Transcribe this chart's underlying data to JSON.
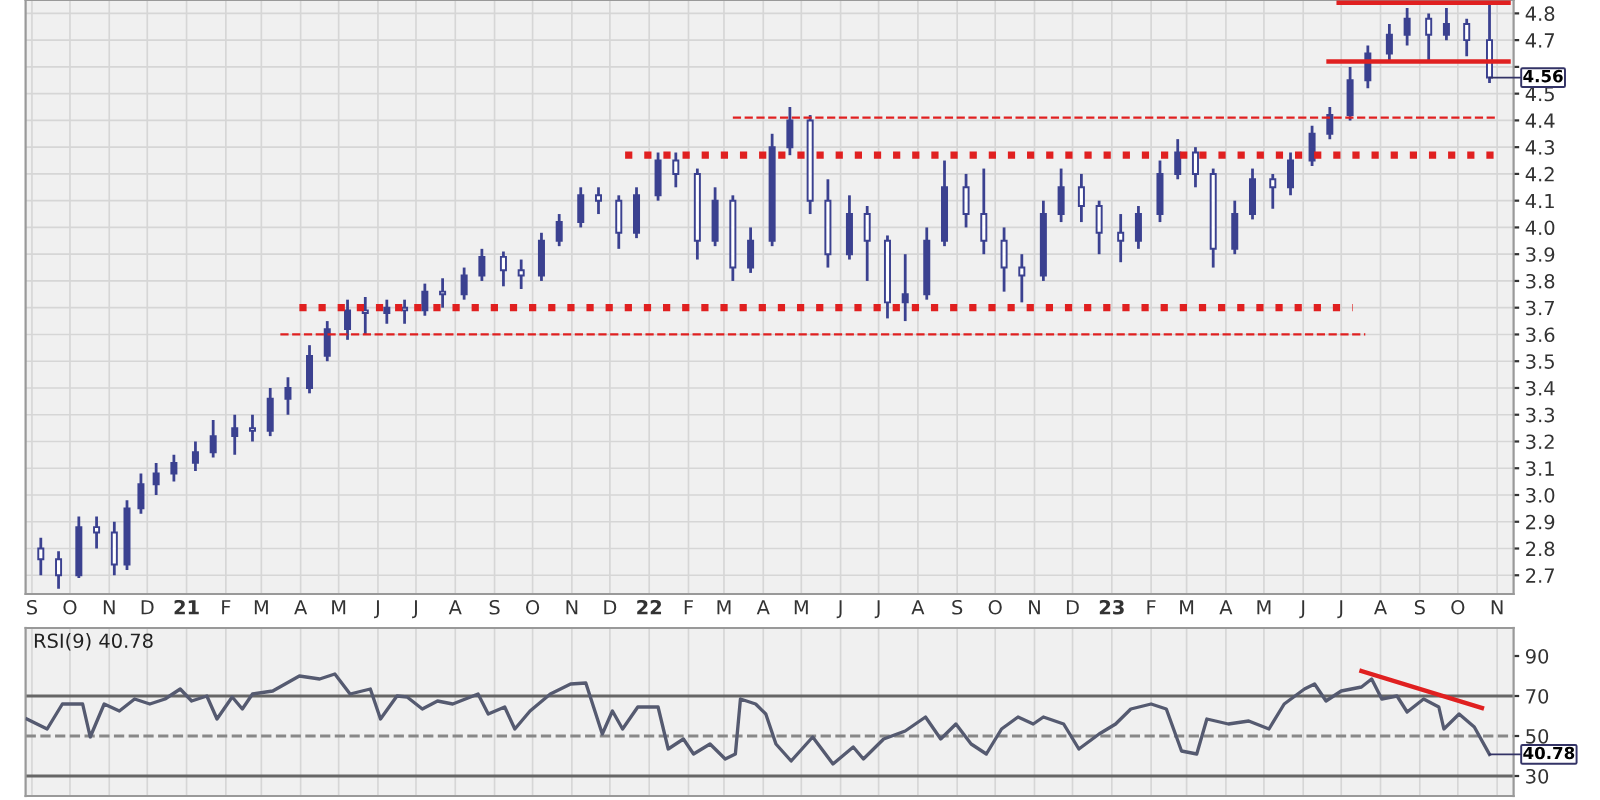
{
  "chart_data": [
    {
      "type": "candlestick",
      "x": [
        "2020-09-08",
        "2020-09-22",
        "2020-10-08",
        "2020-10-22",
        "2020-11-05",
        "2020-11-15",
        "2020-11-26",
        "2020-12-08",
        "2020-12-22",
        "2021-01-08",
        "2021-01-22",
        "2021-02-08",
        "2021-02-22",
        "2021-03-08",
        "2021-03-22",
        "2021-04-08",
        "2021-04-22",
        "2021-05-08",
        "2021-05-22",
        "2021-06-08",
        "2021-06-22",
        "2021-07-08",
        "2021-07-22",
        "2021-08-08",
        "2021-08-22",
        "2021-09-08",
        "2021-09-22",
        "2021-10-08",
        "2021-10-22",
        "2021-11-08",
        "2021-11-22",
        "2021-12-08",
        "2021-12-22",
        "2022-01-08",
        "2022-01-22",
        "2022-02-08",
        "2022-02-22",
        "2022-03-08",
        "2022-03-22",
        "2022-04-08",
        "2022-04-22",
        "2022-05-08",
        "2022-05-22",
        "2022-06-08",
        "2022-06-22",
        "2022-07-08",
        "2022-07-22",
        "2022-08-08",
        "2022-08-22",
        "2022-09-08",
        "2022-09-22",
        "2022-10-08",
        "2022-10-22",
        "2022-11-08",
        "2022-11-22",
        "2022-12-08",
        "2022-12-22",
        "2023-01-08",
        "2023-01-22",
        "2023-02-08",
        "2023-02-22",
        "2023-03-08",
        "2023-03-22",
        "2023-04-08",
        "2023-04-22",
        "2023-05-08",
        "2023-05-22",
        "2023-06-08",
        "2023-06-22",
        "2023-07-08",
        "2023-07-22",
        "2023-08-08",
        "2023-08-22",
        "2023-09-08",
        "2023-09-22",
        "2023-10-08",
        "2023-10-26"
      ],
      "ohlc": [
        [
          2.8,
          2.84,
          2.7,
          2.76
        ],
        [
          2.76,
          2.79,
          2.65,
          2.7
        ],
        [
          2.7,
          2.92,
          2.69,
          2.88
        ],
        [
          2.88,
          2.92,
          2.8,
          2.86
        ],
        [
          2.86,
          2.9,
          2.7,
          2.74
        ],
        [
          2.74,
          2.98,
          2.72,
          2.95
        ],
        [
          2.95,
          3.08,
          2.93,
          3.04
        ],
        [
          3.04,
          3.12,
          3.0,
          3.08
        ],
        [
          3.08,
          3.15,
          3.05,
          3.12
        ],
        [
          3.12,
          3.2,
          3.09,
          3.16
        ],
        [
          3.16,
          3.28,
          3.14,
          3.22
        ],
        [
          3.22,
          3.3,
          3.15,
          3.25
        ],
        [
          3.25,
          3.3,
          3.2,
          3.24
        ],
        [
          3.24,
          3.4,
          3.22,
          3.36
        ],
        [
          3.36,
          3.44,
          3.3,
          3.4
        ],
        [
          3.4,
          3.56,
          3.38,
          3.52
        ],
        [
          3.52,
          3.65,
          3.5,
          3.62
        ],
        [
          3.62,
          3.73,
          3.58,
          3.69
        ],
        [
          3.69,
          3.74,
          3.6,
          3.68
        ],
        [
          3.68,
          3.73,
          3.64,
          3.7
        ],
        [
          3.7,
          3.73,
          3.64,
          3.69
        ],
        [
          3.69,
          3.79,
          3.67,
          3.76
        ],
        [
          3.76,
          3.81,
          3.7,
          3.75
        ],
        [
          3.75,
          3.85,
          3.73,
          3.82
        ],
        [
          3.82,
          3.92,
          3.8,
          3.89
        ],
        [
          3.89,
          3.91,
          3.78,
          3.84
        ],
        [
          3.84,
          3.88,
          3.77,
          3.82
        ],
        [
          3.82,
          3.98,
          3.8,
          3.95
        ],
        [
          3.95,
          4.05,
          3.93,
          4.02
        ],
        [
          4.02,
          4.15,
          4.0,
          4.12
        ],
        [
          4.12,
          4.15,
          4.05,
          4.1
        ],
        [
          4.1,
          4.12,
          3.92,
          3.98
        ],
        [
          3.98,
          4.15,
          3.96,
          4.12
        ],
        [
          4.12,
          4.28,
          4.1,
          4.25
        ],
        [
          4.25,
          4.28,
          4.15,
          4.2
        ],
        [
          4.2,
          4.22,
          3.88,
          3.95
        ],
        [
          3.95,
          4.15,
          3.93,
          4.1
        ],
        [
          4.1,
          4.12,
          3.8,
          3.85
        ],
        [
          3.85,
          4.0,
          3.83,
          3.95
        ],
        [
          3.95,
          4.35,
          3.93,
          4.3
        ],
        [
          4.3,
          4.45,
          4.27,
          4.4
        ],
        [
          4.4,
          4.42,
          4.05,
          4.1
        ],
        [
          4.1,
          4.18,
          3.85,
          3.9
        ],
        [
          3.9,
          4.12,
          3.88,
          4.05
        ],
        [
          4.05,
          4.08,
          3.8,
          3.95
        ],
        [
          3.95,
          3.97,
          3.66,
          3.72
        ],
        [
          3.72,
          3.9,
          3.65,
          3.75
        ],
        [
          3.75,
          4.0,
          3.73,
          3.95
        ],
        [
          3.95,
          4.25,
          3.93,
          4.15
        ],
        [
          4.15,
          4.2,
          4.0,
          4.05
        ],
        [
          4.05,
          4.22,
          3.9,
          3.95
        ],
        [
          3.95,
          4.0,
          3.76,
          3.85
        ],
        [
          3.85,
          3.9,
          3.72,
          3.82
        ],
        [
          3.82,
          4.1,
          3.8,
          4.05
        ],
        [
          4.05,
          4.22,
          4.02,
          4.15
        ],
        [
          4.15,
          4.2,
          4.02,
          4.08
        ],
        [
          4.08,
          4.1,
          3.9,
          3.98
        ],
        [
          3.98,
          4.05,
          3.87,
          3.95
        ],
        [
          3.95,
          4.08,
          3.92,
          4.05
        ],
        [
          4.05,
          4.25,
          4.02,
          4.2
        ],
        [
          4.2,
          4.33,
          4.18,
          4.28
        ],
        [
          4.28,
          4.3,
          4.15,
          4.2
        ],
        [
          4.2,
          4.22,
          3.85,
          3.92
        ],
        [
          3.92,
          4.1,
          3.9,
          4.05
        ],
        [
          4.05,
          4.22,
          4.03,
          4.18
        ],
        [
          4.18,
          4.2,
          4.07,
          4.15
        ],
        [
          4.15,
          4.28,
          4.12,
          4.25
        ],
        [
          4.25,
          4.38,
          4.23,
          4.35
        ],
        [
          4.35,
          4.45,
          4.33,
          4.42
        ],
        [
          4.42,
          4.6,
          4.4,
          4.55
        ],
        [
          4.55,
          4.68,
          4.52,
          4.65
        ],
        [
          4.65,
          4.76,
          4.62,
          4.72
        ],
        [
          4.72,
          4.82,
          4.68,
          4.78
        ],
        [
          4.78,
          4.8,
          4.62,
          4.72
        ],
        [
          4.72,
          4.82,
          4.7,
          4.76
        ],
        [
          4.76,
          4.78,
          4.64,
          4.7
        ],
        [
          4.7,
          4.84,
          4.54,
          4.56
        ]
      ],
      "color": "#3b4190",
      "series": [
        {
          "type": "line",
          "color": "#e02020",
          "line_style": "dotted",
          "x": [
            "2021-12-13",
            "2023-11-02"
          ],
          "values": [
            4.27,
            4.27
          ]
        },
        {
          "type": "line",
          "color": "#e02020",
          "line_style": "dotted",
          "x": [
            "2021-03-31",
            "2023-07-10"
          ],
          "values": [
            3.7,
            3.7
          ]
        },
        {
          "type": "line",
          "color": "#e02020",
          "line_style": "dashed",
          "x": [
            "2021-03-16",
            "2023-07-20"
          ],
          "values": [
            3.6,
            3.6
          ]
        },
        {
          "type": "line",
          "color": "#e02020",
          "line_style": "dashed",
          "x": [
            "2022-03-08",
            "2023-11-02"
          ],
          "values": [
            4.41,
            4.41
          ]
        },
        {
          "type": "line",
          "color": "#e02020",
          "line_style": "solid",
          "x": [
            "2023-06-21",
            "2023-11-10"
          ],
          "values": [
            4.62,
            4.62
          ]
        },
        {
          "type": "line",
          "color": "#e02020",
          "line_style": "solid",
          "x": [
            "2023-06-29",
            "2023-11-10"
          ],
          "values": [
            4.84,
            4.84
          ]
        }
      ],
      "xlim": [
        "2020-08-27",
        "2023-11-14"
      ],
      "xticks": [
        {
          "value": "2020-09-01",
          "label": "S"
        },
        {
          "value": "2020-10-01",
          "label": "O"
        },
        {
          "value": "2020-11-01",
          "label": "N"
        },
        {
          "value": "2020-12-01",
          "label": "D"
        },
        {
          "value": "2021-01-01",
          "label": "21"
        },
        {
          "value": "2021-02-01",
          "label": "F"
        },
        {
          "value": "2021-03-01",
          "label": "M"
        },
        {
          "value": "2021-04-01",
          "label": "A"
        },
        {
          "value": "2021-05-01",
          "label": "M"
        },
        {
          "value": "2021-06-01",
          "label": "J"
        },
        {
          "value": "2021-07-01",
          "label": "J"
        },
        {
          "value": "2021-08-01",
          "label": "A"
        },
        {
          "value": "2021-09-01",
          "label": "S"
        },
        {
          "value": "2021-10-01",
          "label": "O"
        },
        {
          "value": "2021-11-01",
          "label": "N"
        },
        {
          "value": "2021-12-01",
          "label": "D"
        },
        {
          "value": "2022-01-01",
          "label": "22"
        },
        {
          "value": "2022-02-01",
          "label": "F"
        },
        {
          "value": "2022-03-01",
          "label": "M"
        },
        {
          "value": "2022-04-01",
          "label": "A"
        },
        {
          "value": "2022-05-01",
          "label": "M"
        },
        {
          "value": "2022-06-01",
          "label": "J"
        },
        {
          "value": "2022-07-01",
          "label": "J"
        },
        {
          "value": "2022-08-01",
          "label": "A"
        },
        {
          "value": "2022-09-01",
          "label": "S"
        },
        {
          "value": "2022-10-01",
          "label": "O"
        },
        {
          "value": "2022-11-01",
          "label": "N"
        },
        {
          "value": "2022-12-01",
          "label": "D"
        },
        {
          "value": "2023-01-01",
          "label": "23"
        },
        {
          "value": "2023-02-01",
          "label": "F"
        },
        {
          "value": "2023-03-01",
          "label": "M"
        },
        {
          "value": "2023-04-01",
          "label": "A"
        },
        {
          "value": "2023-05-01",
          "label": "M"
        },
        {
          "value": "2023-06-01",
          "label": "J"
        },
        {
          "value": "2023-07-01",
          "label": "J"
        },
        {
          "value": "2023-08-01",
          "label": "A"
        },
        {
          "value": "2023-09-01",
          "label": "S"
        },
        {
          "value": "2023-10-01",
          "label": "O"
        },
        {
          "value": "2023-11-01",
          "label": "N"
        }
      ],
      "ylim": [
        2.63,
        4.85
      ],
      "yticks": [
        2.7,
        2.8,
        2.9,
        {
          "value": 3,
          "label": "3.0"
        },
        3.1,
        3.2,
        3.3,
        3.4,
        3.5,
        3.6,
        3.7,
        3.8,
        3.9,
        {
          "value": 4,
          "label": "4.0"
        },
        4.1,
        4.2,
        4.3,
        4.4,
        4.5,
        {
          "value": 4.6,
          "label": null
        },
        4.7,
        4.8
      ],
      "annotations": [
        {
          "text": "4.56",
          "x": "2023-10-26",
          "y": 4.56
        }
      ],
      "grid": true
    },
    {
      "type": "line",
      "title": "RSI(9) 40.78",
      "series": [
        {
          "color": "#555a70",
          "x": [
            "2020-08-28",
            "2020-09-13",
            "2020-09-25",
            "2020-10-11",
            "2020-10-17",
            "2020-10-28",
            "2020-11-09",
            "2020-11-21",
            "2020-12-03",
            "2020-12-15",
            "2020-12-27",
            "2021-01-05",
            "2021-01-17",
            "2021-01-25",
            "2021-02-06",
            "2021-02-14",
            "2021-02-22",
            "2021-03-10",
            "2021-03-31",
            "2021-04-16",
            "2021-04-28",
            "2021-05-10",
            "2021-05-26",
            "2021-06-03",
            "2021-06-16",
            "2021-06-24",
            "2021-07-06",
            "2021-07-18",
            "2021-07-30",
            "2021-08-19",
            "2021-08-27",
            "2021-09-09",
            "2021-09-17",
            "2021-09-29",
            "2021-10-15",
            "2021-10-31",
            "2021-11-12",
            "2021-11-25",
            "2021-12-03",
            "2021-12-11",
            "2021-12-23",
            "2022-01-08",
            "2022-01-16",
            "2022-01-28",
            "2022-02-05",
            "2022-02-18",
            "2022-03-02",
            "2022-03-10",
            "2022-03-14",
            "2022-03-26",
            "2022-04-03",
            "2022-04-11",
            "2022-04-23",
            "2022-05-10",
            "2022-05-26",
            "2022-06-11",
            "2022-06-19",
            "2022-07-05",
            "2022-07-22",
            "2022-08-07",
            "2022-08-19",
            "2022-08-31",
            "2022-09-12",
            "2022-09-24",
            "2022-10-06",
            "2022-10-19",
            "2022-10-31",
            "2022-11-08",
            "2022-11-24",
            "2022-12-06",
            "2022-12-22",
            "2023-01-04",
            "2023-01-16",
            "2023-02-01",
            "2023-02-13",
            "2023-02-25",
            "2023-03-09",
            "2023-03-17",
            "2023-04-03",
            "2023-04-19",
            "2023-05-05",
            "2023-05-17",
            "2023-06-02",
            "2023-06-10",
            "2023-06-19",
            "2023-07-01",
            "2023-07-17",
            "2023-07-25",
            "2023-08-02",
            "2023-08-14",
            "2023-08-22",
            "2023-09-04",
            "2023-09-16",
            "2023-09-20",
            "2023-10-02",
            "2023-10-14",
            "2023-10-26"
          ],
          "values": [
            58.5,
            53.5,
            66,
            66,
            49.5,
            66,
            62.5,
            68.5,
            66,
            68.5,
            73.5,
            67.5,
            70,
            58.5,
            69.5,
            63.5,
            71,
            72.5,
            80,
            78.5,
            81,
            71,
            73.5,
            58.5,
            70,
            69.5,
            63.5,
            67.5,
            66,
            71,
            61,
            64.5,
            53.5,
            62.5,
            71,
            76,
            76.5,
            51,
            62.5,
            53.5,
            64.5,
            64.5,
            43.5,
            48.5,
            41,
            46,
            38.5,
            41,
            68.5,
            66,
            61,
            46,
            37.5,
            49.5,
            36,
            44.5,
            38.5,
            48.5,
            52.5,
            59.5,
            48.5,
            56,
            46,
            41,
            53.5,
            59.5,
            56,
            59.5,
            56,
            43.5,
            51,
            56,
            63.5,
            66,
            63.5,
            42.5,
            41,
            58.5,
            56,
            57.5,
            53.5,
            66,
            73.5,
            76,
            67.5,
            72.5,
            74.5,
            78.5,
            68.5,
            70,
            62,
            68.5,
            64.5,
            53.5,
            61,
            54.5,
            40.78
          ]
        },
        {
          "type": "line",
          "color": "#e02020",
          "line_style": "solid",
          "x": [
            "2023-07-17",
            "2023-10-20"
          ],
          "values": [
            82.5,
            64
          ]
        }
      ],
      "ref_lines": [
        {
          "axis": "y",
          "value": 70,
          "color": "#666666",
          "line_style": "solid"
        },
        {
          "axis": "y",
          "value": 50,
          "color": "#888888",
          "line_style": "dashed"
        },
        {
          "axis": "y",
          "value": 30,
          "color": "#666666",
          "line_style": "solid"
        }
      ],
      "xlim": [
        "2020-08-27",
        "2023-11-14"
      ],
      "ylim": [
        20,
        104
      ],
      "yticks": [
        30,
        50,
        70,
        90
      ],
      "tick_labels": "y",
      "annotations": [
        {
          "text": "40.78",
          "x": "2023-10-26",
          "y": 40.78
        }
      ],
      "grid": "x"
    }
  ]
}
